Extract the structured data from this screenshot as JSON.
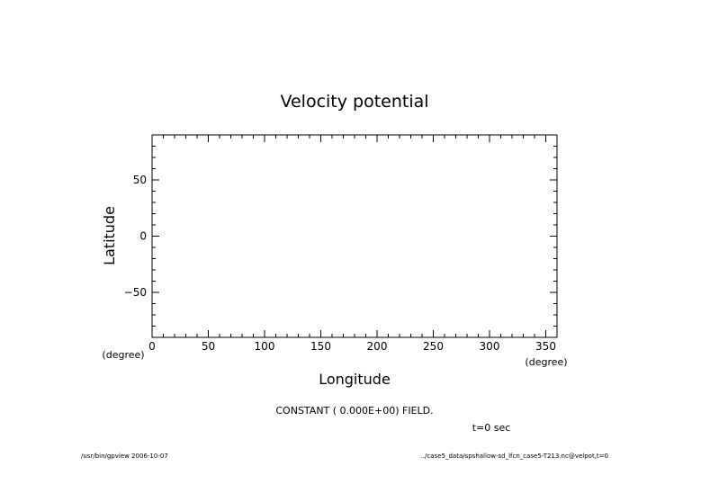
{
  "chart_data": {
    "type": "heatmap",
    "title": "Velocity potential",
    "xlabel": "Longitude",
    "ylabel": "Latitude",
    "xunit": "(degree)",
    "yunit": "(degree)",
    "xlim": [
      0,
      360
    ],
    "ylim": [
      -90,
      90
    ],
    "x_ticks": [
      0,
      50,
      100,
      150,
      200,
      250,
      300,
      350
    ],
    "y_ticks": [
      50,
      0,
      -50
    ],
    "x_tick_labels": [
      "0",
      "50",
      "100",
      "150",
      "200",
      "250",
      "300",
      "350"
    ],
    "y_tick_labels": [
      "50",
      "0",
      "−50"
    ],
    "x_minor_step": 10,
    "y_minor_step": 10,
    "grid": false,
    "field_message": "CONSTANT ( 0.000E+00) FIELD.",
    "time_label": "t=0 sec",
    "values": []
  },
  "footer": {
    "left": "/usr/bin/gpview  2006-10-07",
    "right": "../case5_data/spshallow-sd_lfcn_case5-T213.nc@velpot,t=0"
  }
}
